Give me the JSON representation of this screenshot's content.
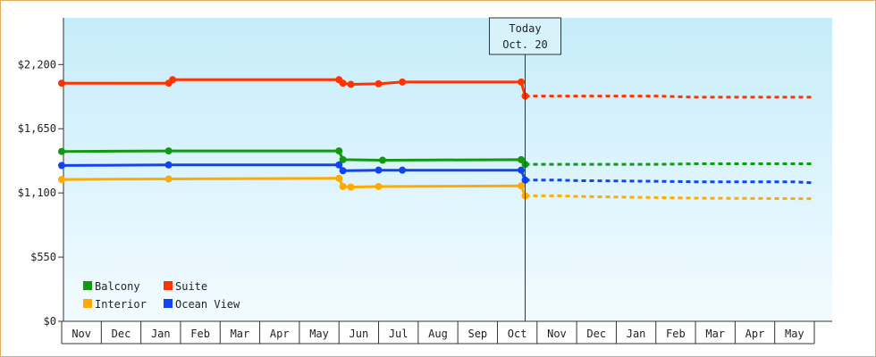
{
  "chart_data": {
    "type": "line",
    "title": "",
    "xlabel": "",
    "ylabel": "",
    "ylim": [
      0,
      2600
    ],
    "y_ticks": [
      0,
      550,
      1100,
      1650,
      2200
    ],
    "y_tick_labels": [
      "$0",
      "$550",
      "$1,100",
      "$1,650",
      "$2,200"
    ],
    "x_range": [
      0,
      19
    ],
    "x_ticks": [
      "Nov",
      "Dec",
      "Jan",
      "Feb",
      "Mar",
      "Apr",
      "May",
      "Jun",
      "Jul",
      "Aug",
      "Sep",
      "Oct",
      "Nov",
      "Dec",
      "Jan",
      "Feb",
      "Mar",
      "Apr",
      "May"
    ],
    "today_marker": {
      "line1": "Today",
      "line2": "Oct. 20",
      "x": 11.7
    },
    "legend_placement": "bottom-left",
    "grid": false,
    "series": [
      {
        "name": "Balcony",
        "color": "#119911",
        "actual": [
          [
            0,
            1455
          ],
          [
            2.7,
            1460
          ],
          [
            7.0,
            1460
          ],
          [
            7.1,
            1385
          ],
          [
            8.1,
            1380
          ],
          [
            11.6,
            1385
          ],
          [
            11.7,
            1345
          ]
        ],
        "forecast": [
          [
            11.7,
            1345
          ],
          [
            15.0,
            1345
          ],
          [
            16.0,
            1350
          ],
          [
            19.0,
            1350
          ]
        ]
      },
      {
        "name": "Suite",
        "color": "#ff3300",
        "actual": [
          [
            0,
            2040
          ],
          [
            2.7,
            2040
          ],
          [
            2.8,
            2070
          ],
          [
            7.0,
            2070
          ],
          [
            7.1,
            2040
          ],
          [
            7.3,
            2030
          ],
          [
            8.0,
            2035
          ],
          [
            8.6,
            2050
          ],
          [
            11.6,
            2050
          ],
          [
            11.7,
            1930
          ]
        ],
        "forecast": [
          [
            11.7,
            1930
          ],
          [
            15.0,
            1930
          ],
          [
            16.0,
            1920
          ],
          [
            19.0,
            1920
          ]
        ]
      },
      {
        "name": "Ocean View",
        "color": "#1144ee",
        "actual": [
          [
            0,
            1335
          ],
          [
            2.7,
            1340
          ],
          [
            7.0,
            1340
          ],
          [
            7.1,
            1290
          ],
          [
            8.0,
            1295
          ],
          [
            8.6,
            1295
          ],
          [
            11.6,
            1295
          ],
          [
            11.7,
            1210
          ]
        ],
        "forecast": [
          [
            11.7,
            1210
          ],
          [
            12.6,
            1210
          ],
          [
            13.0,
            1205
          ],
          [
            15.0,
            1200
          ],
          [
            16.0,
            1195
          ],
          [
            18.5,
            1195
          ],
          [
            19.0,
            1185
          ]
        ]
      },
      {
        "name": "Interior",
        "color": "#ffaa00",
        "actual": [
          [
            0,
            1215
          ],
          [
            2.7,
            1220
          ],
          [
            7.0,
            1225
          ],
          [
            7.1,
            1155
          ],
          [
            7.3,
            1150
          ],
          [
            8.0,
            1155
          ],
          [
            11.6,
            1160
          ],
          [
            11.7,
            1075
          ]
        ],
        "forecast": [
          [
            11.7,
            1075
          ],
          [
            12.6,
            1075
          ],
          [
            13.0,
            1070
          ],
          [
            15.0,
            1060
          ],
          [
            16.0,
            1055
          ],
          [
            19.0,
            1050
          ]
        ]
      }
    ],
    "markers": {
      "Balcony": [
        [
          0,
          1455
        ],
        [
          2.7,
          1460
        ],
        [
          7.0,
          1460
        ],
        [
          7.1,
          1385
        ],
        [
          8.1,
          1380
        ],
        [
          11.6,
          1385
        ],
        [
          11.7,
          1345
        ]
      ],
      "Suite": [
        [
          0,
          2040
        ],
        [
          2.7,
          2040
        ],
        [
          2.8,
          2070
        ],
        [
          7.0,
          2070
        ],
        [
          7.1,
          2040
        ],
        [
          7.3,
          2030
        ],
        [
          8.0,
          2035
        ],
        [
          8.6,
          2050
        ],
        [
          11.6,
          2050
        ],
        [
          11.7,
          1930
        ]
      ],
      "Ocean View": [
        [
          0,
          1335
        ],
        [
          2.7,
          1340
        ],
        [
          7.0,
          1340
        ],
        [
          7.1,
          1290
        ],
        [
          8.0,
          1295
        ],
        [
          8.6,
          1295
        ],
        [
          11.6,
          1295
        ],
        [
          11.7,
          1210
        ]
      ],
      "Interior": [
        [
          0,
          1215
        ],
        [
          2.7,
          1220
        ],
        [
          7.0,
          1225
        ],
        [
          7.1,
          1155
        ],
        [
          7.3,
          1150
        ],
        [
          8.0,
          1155
        ],
        [
          11.6,
          1160
        ],
        [
          11.7,
          1075
        ]
      ]
    }
  }
}
